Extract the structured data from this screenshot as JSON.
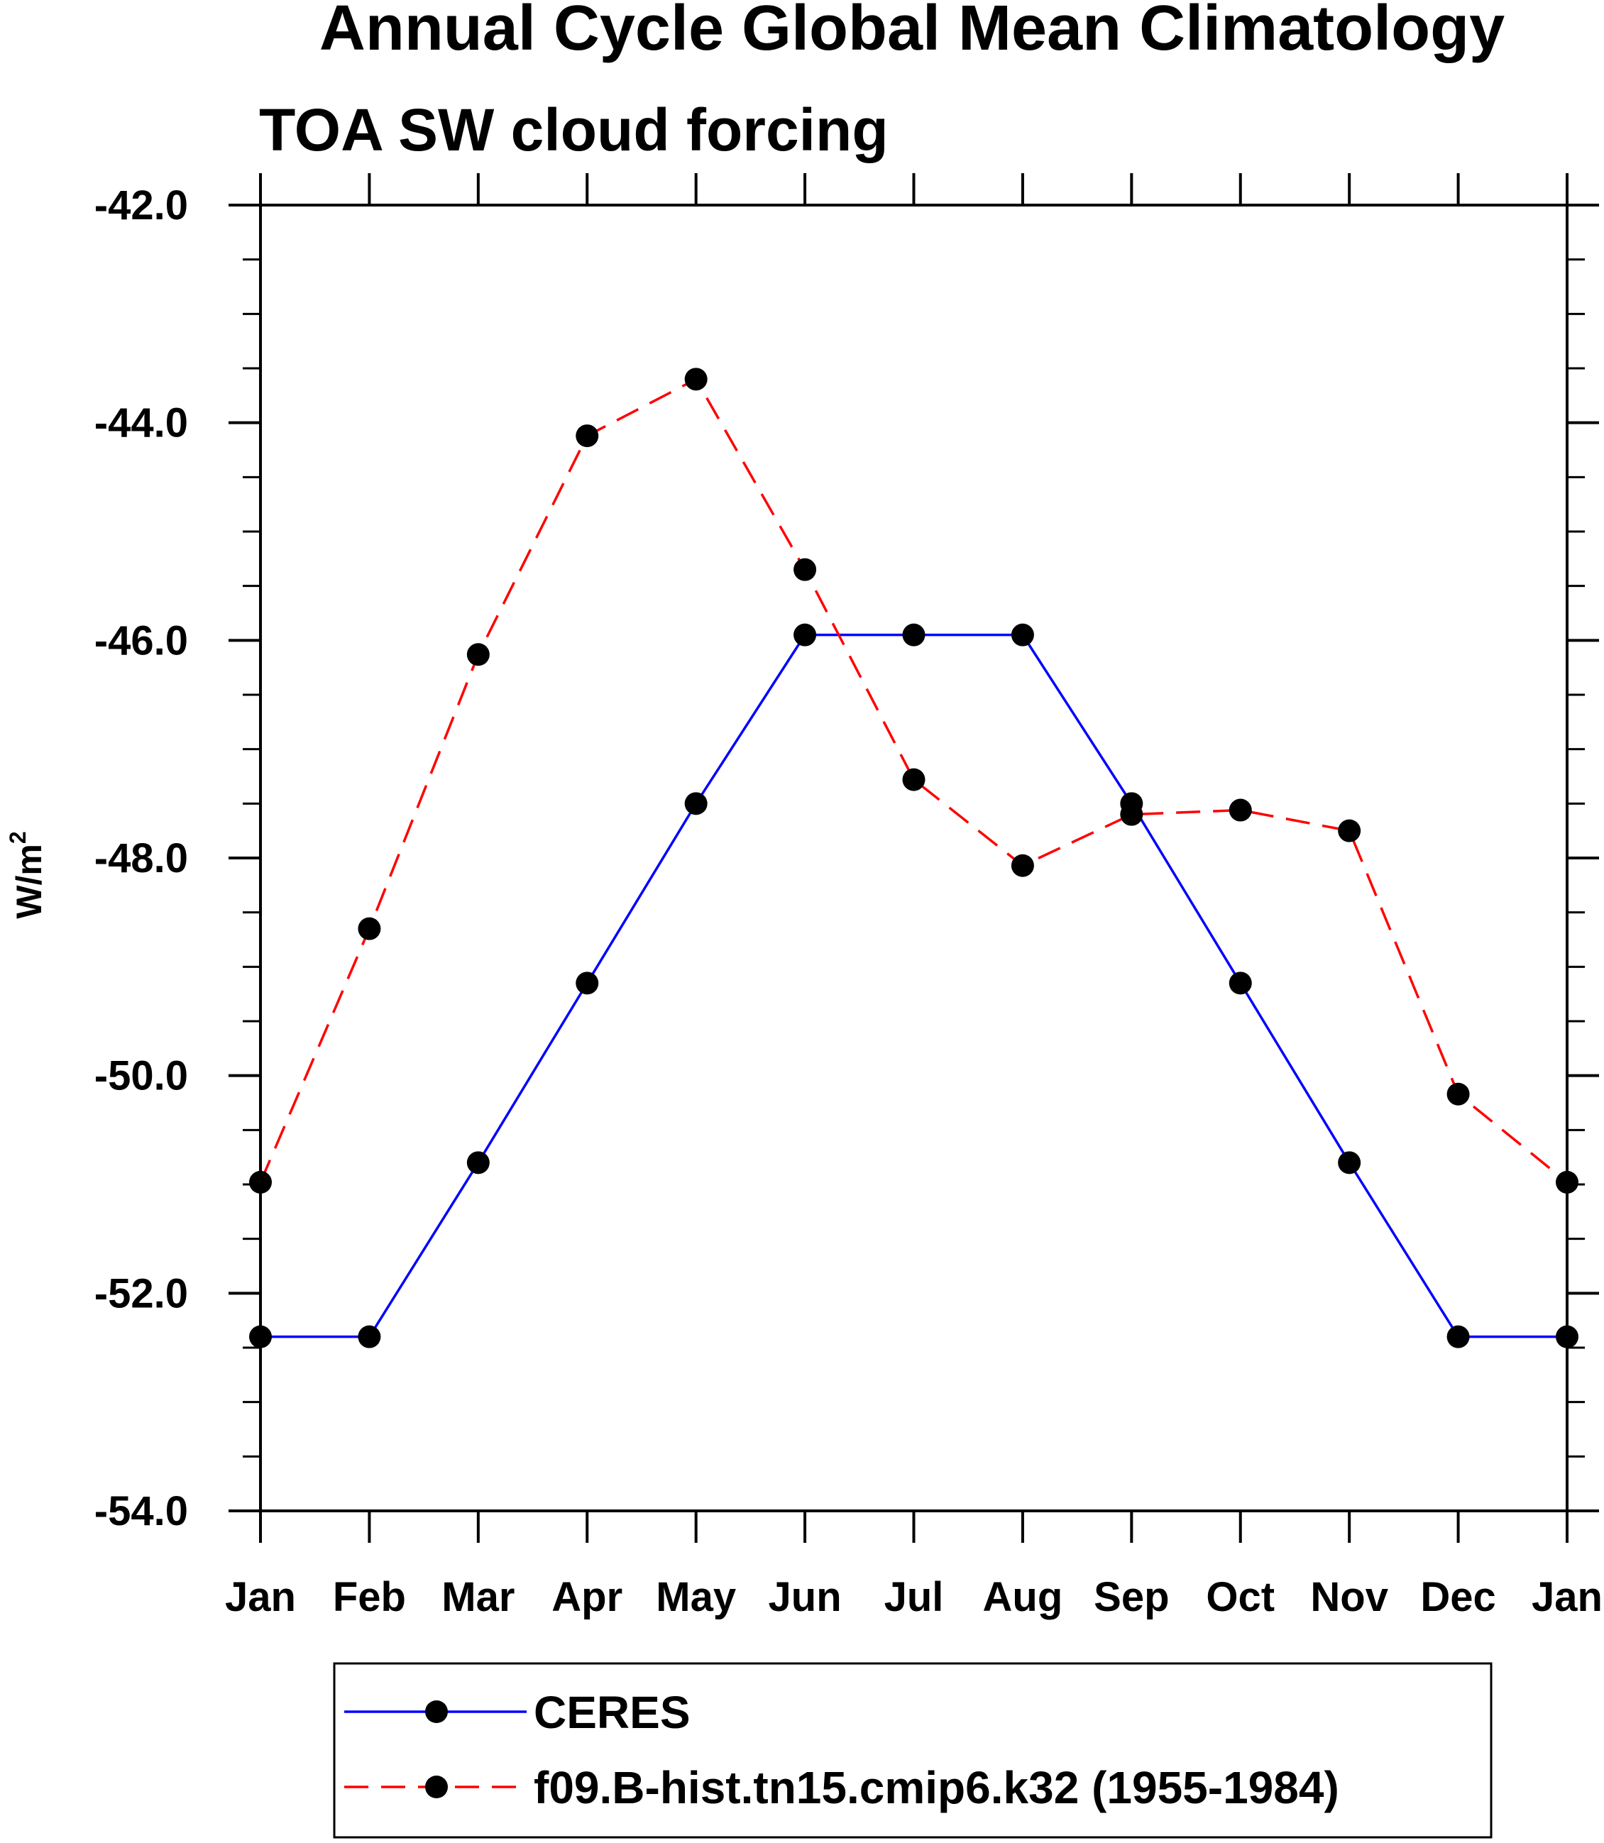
{
  "chart_data": {
    "type": "line",
    "title": "Annual Cycle Global Mean Climatology",
    "subtitle": "TOA SW cloud forcing",
    "ylabel": "W/m",
    "ylabel_superscript": "2",
    "xlabel": "",
    "categories": [
      "Jan",
      "Feb",
      "Mar",
      "Apr",
      "May",
      "Jun",
      "Jul",
      "Aug",
      "Sep",
      "Oct",
      "Nov",
      "Dec",
      "Jan"
    ],
    "ylim": [
      -54.0,
      -42.0
    ],
    "yticks": [
      -42.0,
      -44.0,
      -46.0,
      -48.0,
      -50.0,
      -52.0,
      -54.0
    ],
    "ytick_labels": [
      "-42.0",
      "-44.0",
      "-46.0",
      "-48.0",
      "-50.0",
      "-52.0",
      "-54.0"
    ],
    "y_minor_step": 0.5,
    "grid": false,
    "legend_position": "bottom",
    "series": [
      {
        "name": "CERES",
        "color": "#0000ff",
        "dash": "solid",
        "marker": "filled-circle",
        "values": [
          -52.4,
          -52.4,
          -50.8,
          -49.15,
          -47.5,
          -45.95,
          -45.95,
          -45.95,
          -47.5,
          -49.15,
          -50.8,
          -52.4,
          -52.4
        ]
      },
      {
        "name": "f09.B-hist.tn15.cmip6.k32 (1955-1984)",
        "color": "#ff0000",
        "dash": "dashed",
        "marker": "filled-circle",
        "values": [
          -50.98,
          -48.65,
          -46.13,
          -44.12,
          -43.6,
          -45.35,
          -47.28,
          -48.07,
          -47.6,
          -47.56,
          -47.75,
          -50.17,
          -50.98
        ]
      }
    ]
  }
}
